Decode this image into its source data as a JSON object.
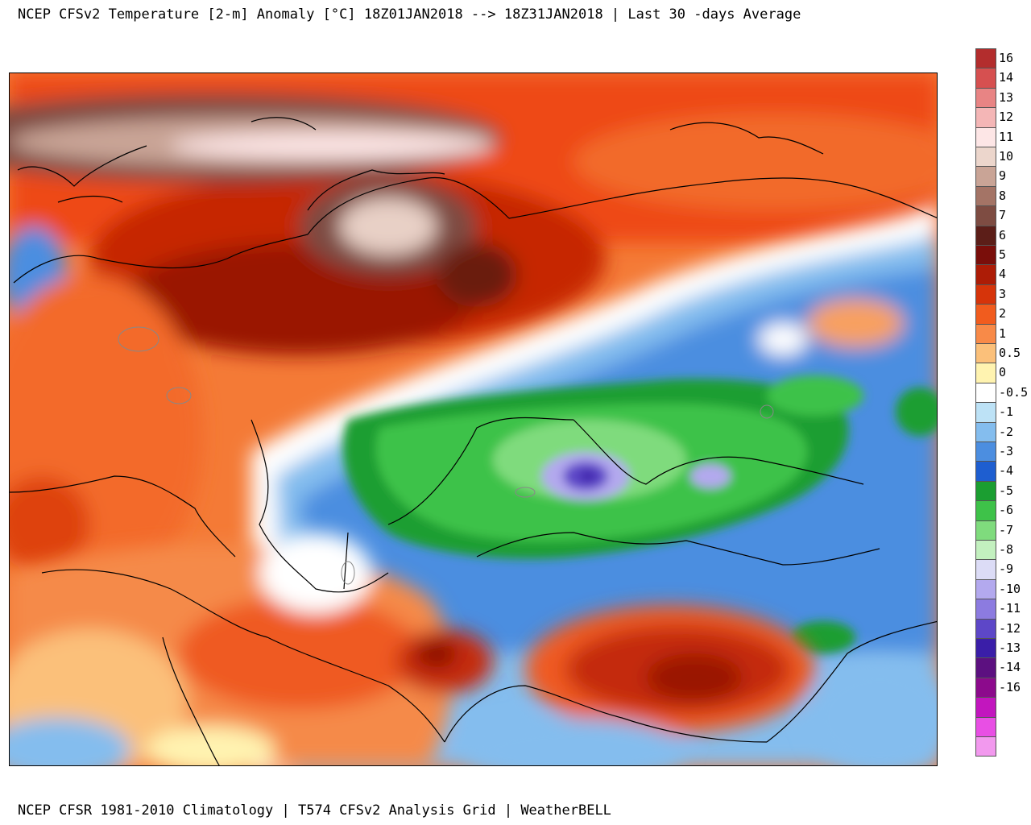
{
  "title": "NCEP CFSv2 Temperature [2-m] Anomaly  [°C] 18Z01JAN2018 --> 18Z31JAN2018 | Last 30 -days Average",
  "footer": "NCEP CFSR 1981-2010 Climatology | T574 CFSv2 Analysis Grid | WeatherBELL",
  "colorbar": {
    "levels": [
      {
        "label": "16",
        "color": "#b32d2d"
      },
      {
        "label": "14",
        "color": "#d65050"
      },
      {
        "label": "13",
        "color": "#e88484"
      },
      {
        "label": "12",
        "color": "#f4b6b6"
      },
      {
        "label": "11",
        "color": "#fde6e6"
      },
      {
        "label": "10",
        "color": "#ecd6cc"
      },
      {
        "label": "9",
        "color": "#c9a496"
      },
      {
        "label": "8",
        "color": "#a47466"
      },
      {
        "label": "7",
        "color": "#7e4c42"
      },
      {
        "label": "6",
        "color": "#5c1e18"
      },
      {
        "label": "5",
        "color": "#7a0e0a"
      },
      {
        "label": "4",
        "color": "#ad1c06"
      },
      {
        "label": "3",
        "color": "#d6340a"
      },
      {
        "label": "2",
        "color": "#f15c1e"
      },
      {
        "label": "1",
        "color": "#f88a48"
      },
      {
        "label": "0.5",
        "color": "#fbc07a"
      },
      {
        "label": "0",
        "color": "#fff3b0"
      },
      {
        "label": "-0.5",
        "color": "#ffffff"
      },
      {
        "label": "-1",
        "color": "#bde2f6"
      },
      {
        "label": "-2",
        "color": "#84bdee"
      },
      {
        "label": "-3",
        "color": "#4c8ee0"
      },
      {
        "label": "-4",
        "color": "#1e5ed0"
      },
      {
        "label": "-5",
        "color": "#1b9e31"
      },
      {
        "label": "-6",
        "color": "#3ec249"
      },
      {
        "label": "-7",
        "color": "#7fdb7d"
      },
      {
        "label": "-8",
        "color": "#c3f0bf"
      },
      {
        "label": "-9",
        "color": "#dcdcf6"
      },
      {
        "label": "-10",
        "color": "#b3a9ee"
      },
      {
        "label": "-11",
        "color": "#8c7be0"
      },
      {
        "label": "-12",
        "color": "#5d47c8"
      },
      {
        "label": "-13",
        "color": "#3a1ea8"
      },
      {
        "label": "-14",
        "color": "#5c1080"
      },
      {
        "label": "-16",
        "color": "#8c0a8c"
      },
      {
        "label": "",
        "color": "#c216be"
      },
      {
        "label": "",
        "color": "#e84fe4"
      },
      {
        "label": "",
        "color": "#f299ee"
      }
    ]
  }
}
